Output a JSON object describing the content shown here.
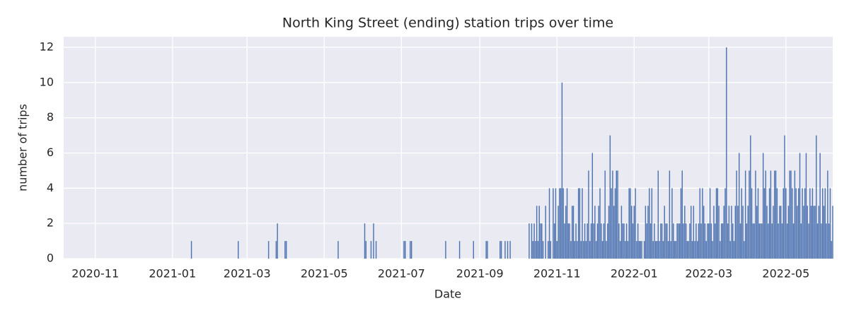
{
  "chart_data": {
    "type": "bar",
    "title": "North King Street (ending) station trips over time",
    "xlabel": "Date",
    "ylabel": "number of trips",
    "color": "#4c72b0",
    "grid": true,
    "xlim": [
      "2020-10-07",
      "2022-06-07"
    ],
    "xticks": [
      {
        "value": "2020-11-01",
        "label": "2020-11"
      },
      {
        "value": "2021-01-01",
        "label": "2021-01"
      },
      {
        "value": "2021-03-01",
        "label": "2021-03"
      },
      {
        "value": "2021-05-01",
        "label": "2021-05"
      },
      {
        "value": "2021-07-01",
        "label": "2021-07"
      },
      {
        "value": "2021-09-01",
        "label": "2021-09"
      },
      {
        "value": "2021-11-01",
        "label": "2021-11"
      },
      {
        "value": "2022-01-01",
        "label": "2022-01"
      },
      {
        "value": "2022-03-01",
        "label": "2022-03"
      },
      {
        "value": "2022-05-01",
        "label": "2022-05"
      }
    ],
    "ylim": [
      0,
      12.6
    ],
    "yticks": [
      0,
      2,
      4,
      6,
      8,
      10,
      12
    ],
    "x": [
      "2021-01-16",
      "2021-02-22",
      "2021-03-18",
      "2021-03-24",
      "2021-03-25",
      "2021-03-31",
      "2021-04-01",
      "2021-05-12",
      "2021-06-02",
      "2021-06-03",
      "2021-06-07",
      "2021-06-09",
      "2021-06-11",
      "2021-07-03",
      "2021-07-04",
      "2021-07-08",
      "2021-07-09",
      "2021-08-05",
      "2021-08-16",
      "2021-08-27",
      "2021-09-06",
      "2021-09-07",
      "2021-09-17",
      "2021-09-18",
      "2021-09-21",
      "2021-09-23",
      "2021-09-25",
      "2021-10-10",
      "2021-10-11",
      "2021-10-12",
      "2021-10-13",
      "2021-10-14",
      "2021-10-15",
      "2021-10-16",
      "2021-10-17",
      "2021-10-18",
      "2021-10-19",
      "2021-10-20",
      "2021-10-21",
      "2021-10-22",
      "2021-10-23",
      "2021-10-24",
      "2021-10-25",
      "2021-10-26",
      "2021-10-27",
      "2021-10-28",
      "2021-10-29",
      "2021-10-30",
      "2021-10-31",
      "2021-11-01",
      "2021-11-02",
      "2021-11-03",
      "2021-11-04",
      "2021-11-05",
      "2021-11-06",
      "2021-11-07",
      "2021-11-08",
      "2021-11-09",
      "2021-11-10",
      "2021-11-11",
      "2021-11-12",
      "2021-11-13",
      "2021-11-14",
      "2021-11-15",
      "2021-11-16",
      "2021-11-17",
      "2021-11-18",
      "2021-11-19",
      "2021-11-20",
      "2021-11-21",
      "2021-11-22",
      "2021-11-23",
      "2021-11-24",
      "2021-11-25",
      "2021-11-26",
      "2021-11-27",
      "2021-11-28",
      "2021-11-29",
      "2021-11-30",
      "2021-12-01",
      "2021-12-02",
      "2021-12-03",
      "2021-12-04",
      "2021-12-05",
      "2021-12-06",
      "2021-12-07",
      "2021-12-08",
      "2021-12-09",
      "2021-12-10",
      "2021-12-11",
      "2021-12-12",
      "2021-12-13",
      "2021-12-14",
      "2021-12-15",
      "2021-12-16",
      "2021-12-17",
      "2021-12-18",
      "2021-12-19",
      "2021-12-20",
      "2021-12-21",
      "2021-12-22",
      "2021-12-23",
      "2021-12-24",
      "2021-12-25",
      "2021-12-26",
      "2021-12-27",
      "2021-12-28",
      "2021-12-29",
      "2021-12-30",
      "2021-12-31",
      "2022-01-01",
      "2022-01-02",
      "2022-01-03",
      "2022-01-04",
      "2022-01-05",
      "2022-01-06",
      "2022-01-07",
      "2022-01-08",
      "2022-01-09",
      "2022-01-10",
      "2022-01-11",
      "2022-01-12",
      "2022-01-13",
      "2022-01-14",
      "2022-01-15",
      "2022-01-16",
      "2022-01-17",
      "2022-01-18",
      "2022-01-19",
      "2022-01-20",
      "2022-01-21",
      "2022-01-22",
      "2022-01-23",
      "2022-01-24",
      "2022-01-25",
      "2022-01-26",
      "2022-01-27",
      "2022-01-28",
      "2022-01-29",
      "2022-01-30",
      "2022-01-31",
      "2022-02-01",
      "2022-02-02",
      "2022-02-03",
      "2022-02-04",
      "2022-02-05",
      "2022-02-06",
      "2022-02-07",
      "2022-02-08",
      "2022-02-09",
      "2022-02-10",
      "2022-02-11",
      "2022-02-12",
      "2022-02-13",
      "2022-02-14",
      "2022-02-15",
      "2022-02-16",
      "2022-02-17",
      "2022-02-18",
      "2022-02-19",
      "2022-02-20",
      "2022-02-21",
      "2022-02-22",
      "2022-02-23",
      "2022-02-24",
      "2022-02-25",
      "2022-02-26",
      "2022-02-27",
      "2022-02-28",
      "2022-03-01",
      "2022-03-02",
      "2022-03-03",
      "2022-03-04",
      "2022-03-05",
      "2022-03-06",
      "2022-03-07",
      "2022-03-08",
      "2022-03-09",
      "2022-03-10",
      "2022-03-11",
      "2022-03-12",
      "2022-03-13",
      "2022-03-14",
      "2022-03-15",
      "2022-03-16",
      "2022-03-17",
      "2022-03-18",
      "2022-03-19",
      "2022-03-20",
      "2022-03-21",
      "2022-03-22",
      "2022-03-23",
      "2022-03-24",
      "2022-03-25",
      "2022-03-26",
      "2022-03-27",
      "2022-03-28",
      "2022-03-29",
      "2022-03-30",
      "2022-03-31",
      "2022-04-01",
      "2022-04-02",
      "2022-04-03",
      "2022-04-04",
      "2022-04-05",
      "2022-04-06",
      "2022-04-07",
      "2022-04-08",
      "2022-04-09",
      "2022-04-10",
      "2022-04-11",
      "2022-04-12",
      "2022-04-13",
      "2022-04-14",
      "2022-04-15",
      "2022-04-16",
      "2022-04-17",
      "2022-04-18",
      "2022-04-19",
      "2022-04-20",
      "2022-04-21",
      "2022-04-22",
      "2022-04-23",
      "2022-04-24",
      "2022-04-25",
      "2022-04-26",
      "2022-04-27",
      "2022-04-28",
      "2022-04-29",
      "2022-04-30",
      "2022-05-01",
      "2022-05-02",
      "2022-05-03",
      "2022-05-04",
      "2022-05-05",
      "2022-05-06",
      "2022-05-07",
      "2022-05-08",
      "2022-05-09",
      "2022-05-10",
      "2022-05-11",
      "2022-05-12",
      "2022-05-13",
      "2022-05-14",
      "2022-05-15",
      "2022-05-16",
      "2022-05-17",
      "2022-05-18",
      "2022-05-19",
      "2022-05-20",
      "2022-05-21",
      "2022-05-22",
      "2022-05-23",
      "2022-05-24",
      "2022-05-25",
      "2022-05-26",
      "2022-05-27",
      "2022-05-28",
      "2022-05-29",
      "2022-05-30",
      "2022-05-31",
      "2022-06-01",
      "2022-06-02",
      "2022-06-03",
      "2022-06-04",
      "2022-06-05",
      "2022-06-06",
      "2022-06-07"
    ],
    "values": [
      1,
      1,
      1,
      1,
      2,
      1,
      1,
      1,
      2,
      1,
      1,
      2,
      1,
      1,
      1,
      1,
      1,
      1,
      1,
      1,
      1,
      1,
      1,
      1,
      1,
      1,
      1,
      2,
      0,
      2,
      1,
      2,
      1,
      3,
      1,
      3,
      2,
      2,
      1,
      0,
      3,
      0,
      1,
      4,
      1,
      0,
      4,
      2,
      4,
      1,
      3,
      4,
      4,
      10,
      4,
      2,
      3,
      4,
      2,
      2,
      1,
      3,
      3,
      1,
      2,
      1,
      4,
      4,
      1,
      4,
      1,
      2,
      1,
      2,
      5,
      1,
      2,
      6,
      2,
      3,
      1,
      2,
      3,
      4,
      2,
      1,
      2,
      5,
      1,
      2,
      3,
      7,
      4,
      5,
      3,
      4,
      5,
      5,
      2,
      1,
      3,
      2,
      2,
      1,
      2,
      1,
      4,
      4,
      3,
      2,
      3,
      4,
      1,
      2,
      1,
      1,
      1,
      0,
      1,
      3,
      2,
      3,
      4,
      2,
      4,
      1,
      2,
      1,
      1,
      5,
      1,
      2,
      2,
      1,
      3,
      2,
      2,
      1,
      5,
      1,
      4,
      2,
      1,
      1,
      2,
      2,
      2,
      4,
      5,
      2,
      3,
      2,
      1,
      1,
      2,
      3,
      1,
      3,
      1,
      2,
      1,
      2,
      4,
      2,
      4,
      3,
      2,
      1,
      2,
      2,
      4,
      2,
      1,
      3,
      2,
      4,
      4,
      3,
      1,
      2,
      2,
      3,
      4,
      12,
      2,
      3,
      1,
      3,
      2,
      1,
      3,
      5,
      3,
      6,
      2,
      4,
      3,
      1,
      5,
      2,
      3,
      5,
      7,
      4,
      2,
      2,
      5,
      3,
      4,
      2,
      2,
      2,
      6,
      4,
      5,
      3,
      2,
      4,
      5,
      2,
      3,
      5,
      5,
      4,
      2,
      3,
      3,
      2,
      4,
      7,
      4,
      2,
      3,
      5,
      5,
      4,
      2,
      5,
      4,
      3,
      4,
      6,
      2,
      4,
      3,
      4,
      6,
      3,
      2,
      4,
      3,
      4,
      3,
      3,
      7,
      2,
      3,
      6,
      2,
      4,
      3,
      4,
      2,
      5,
      2,
      4,
      1,
      3
    ]
  }
}
